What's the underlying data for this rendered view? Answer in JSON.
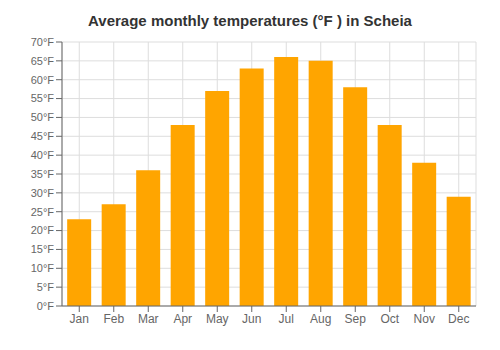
{
  "chart_data": {
    "type": "bar",
    "title": "Average monthly temperatures (°F ) in Scheia",
    "categories": [
      "Jan",
      "Feb",
      "Mar",
      "Apr",
      "May",
      "Jun",
      "Jul",
      "Aug",
      "Sep",
      "Oct",
      "Nov",
      "Dec"
    ],
    "values": [
      23,
      27,
      36,
      48,
      57,
      63,
      66,
      65,
      58,
      48,
      38,
      29
    ],
    "color": "#FFA500",
    "ylim": [
      0,
      70
    ],
    "yticks": [
      {
        "value": 0,
        "label": "0°F"
      },
      {
        "value": 5,
        "label": "5°F"
      },
      {
        "value": 10,
        "label": "10°F"
      },
      {
        "value": 15,
        "label": "15°F"
      },
      {
        "value": 20,
        "label": "20°F"
      },
      {
        "value": 25,
        "label": "25°F"
      },
      {
        "value": 30,
        "label": "30°F"
      },
      {
        "value": 35,
        "label": "35°F"
      },
      {
        "value": 40,
        "label": "40°F"
      },
      {
        "value": 45,
        "label": "45°F"
      },
      {
        "value": 50,
        "label": "50°F"
      },
      {
        "value": 55,
        "label": "55°F"
      },
      {
        "value": 60,
        "label": "60°F"
      },
      {
        "value": 65,
        "label": "65°F"
      },
      {
        "value": 70,
        "label": "70°F"
      }
    ],
    "grid": true
  }
}
